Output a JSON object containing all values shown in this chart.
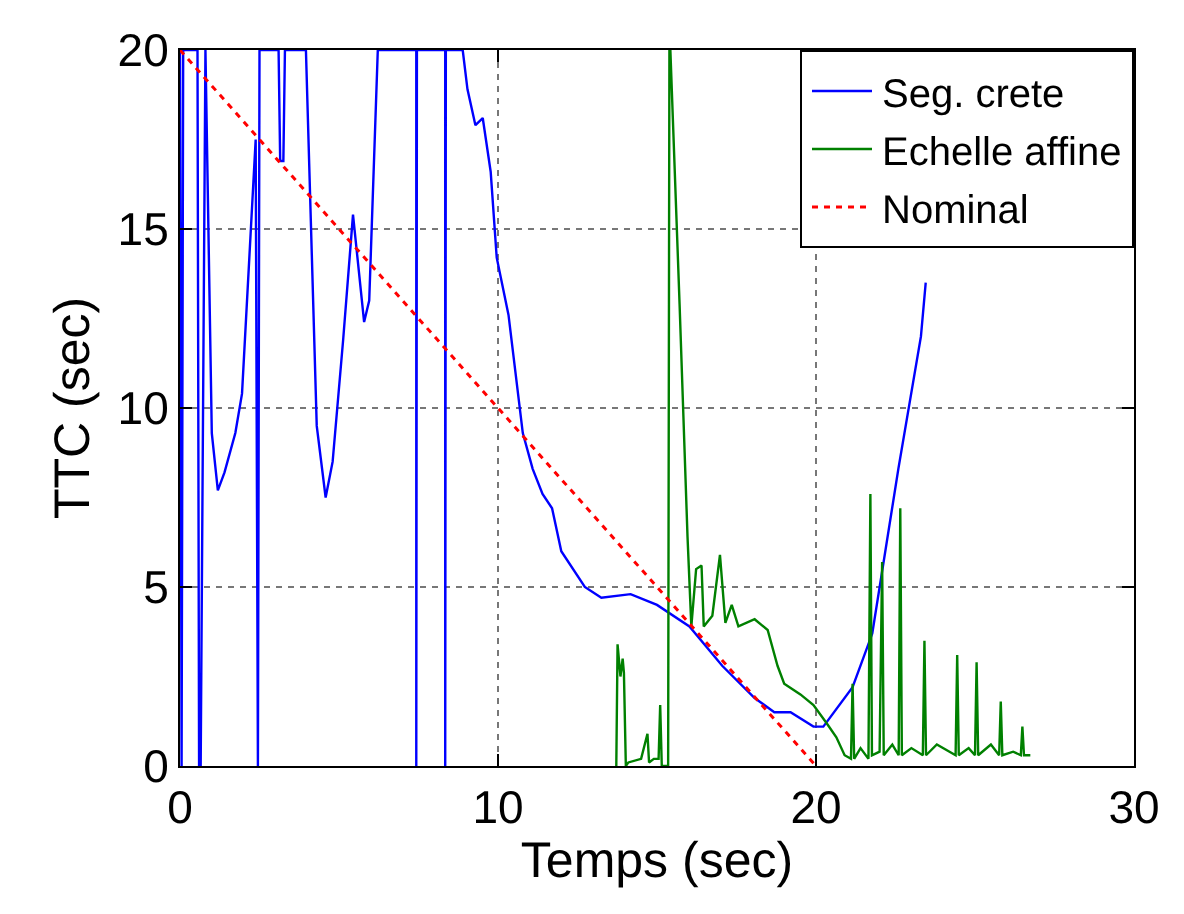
{
  "chart_data": {
    "type": "line",
    "xlabel": "Temps (sec)",
    "ylabel": "TTC (sec)",
    "xlim": [
      0,
      30
    ],
    "xticks": [
      0,
      10,
      20,
      30
    ],
    "ylim": [
      0,
      20
    ],
    "yticks": [
      0,
      5,
      10,
      15,
      20
    ],
    "grid": true,
    "legend": "top right",
    "series": [
      {
        "name": "Seg. crete",
        "color": "#0000ff",
        "line_style": "solid",
        "x": [
          0,
          0.05,
          0.1,
          0.55,
          0.6,
          0.65,
          0.8,
          1.0,
          1.19,
          1.4,
          1.74,
          1.95,
          2.38,
          2.45,
          2.5,
          3.1,
          3.15,
          3.25,
          3.3,
          3.96,
          4.3,
          4.58,
          4.8,
          5.13,
          5.44,
          5.79,
          5.95,
          6.22,
          7.43,
          7.43,
          7.45,
          8.34,
          8.34,
          8.36,
          8.89,
          9.04,
          9.29,
          9.52,
          9.77,
          9.96,
          10.33,
          10.78,
          11.09,
          11.4,
          11.7,
          11.99,
          12.73,
          13.25,
          14.17,
          15.0,
          16.02,
          17.05,
          18.07,
          18.69,
          19.2,
          19.92,
          20.23,
          21.15,
          21.77,
          22.59,
          23.3,
          23.45
        ],
        "values": [
          20,
          0,
          20,
          20,
          0,
          0,
          20,
          9.3,
          7.7,
          8.2,
          9.3,
          10.4,
          17.5,
          0,
          20,
          20,
          16.9,
          16.9,
          20,
          20,
          9.5,
          7.5,
          8.5,
          11.9,
          15.4,
          12.4,
          13.0,
          20,
          20,
          0,
          20,
          20,
          0,
          20,
          20,
          18.9,
          17.9,
          18.1,
          16.6,
          14.2,
          12.6,
          9.3,
          8.3,
          7.6,
          7.2,
          6.0,
          5.0,
          4.7,
          4.8,
          4.5,
          3.9,
          2.8,
          1.9,
          1.5,
          1.5,
          1.1,
          1.1,
          2.2,
          3.7,
          8.3,
          12.0,
          13.5
        ]
      },
      {
        "name": "Echelle affine",
        "color": "#008000",
        "line_style": "solid",
        "x": [
          13.72,
          13.76,
          13.85,
          13.92,
          13.96,
          14.02,
          14.1,
          14.5,
          14.7,
          14.75,
          14.9,
          15.05,
          15.1,
          15.15,
          15.35,
          15.39,
          15.42,
          15.71,
          15.96,
          16.08,
          16.23,
          16.4,
          16.47,
          16.74,
          16.98,
          17.15,
          17.35,
          17.56,
          18.07,
          18.48,
          18.79,
          19.0,
          19.51,
          19.92,
          20.33,
          20.64,
          20.9,
          21.1,
          21.15,
          21.2,
          21.4,
          21.65,
          21.71,
          21.76,
          22.0,
          22.08,
          22.13,
          22.4,
          22.6,
          22.65,
          22.7,
          23.0,
          23.36,
          23.41,
          23.46,
          23.8,
          24.39,
          24.44,
          24.49,
          24.8,
          25.0,
          25.05,
          25.1,
          25.5,
          25.76,
          25.81,
          25.86,
          26.2,
          26.44,
          26.49,
          26.54,
          26.74
        ],
        "values": [
          0,
          3.4,
          2.5,
          3.0,
          2.6,
          0,
          0.1,
          0.2,
          0.9,
          0.1,
          0.2,
          0.2,
          1.7,
          0,
          0,
          20,
          20,
          12.9,
          6.4,
          3.9,
          5.5,
          5.6,
          3.9,
          4.2,
          5.9,
          4.0,
          4.5,
          3.9,
          4.1,
          3.8,
          2.8,
          2.3,
          2.0,
          1.7,
          1.2,
          0.8,
          0.3,
          0.2,
          2.3,
          0.2,
          0.5,
          0.2,
          7.6,
          0.3,
          0.4,
          5.7,
          0.3,
          0.6,
          0.3,
          7.2,
          0.3,
          0.5,
          0.3,
          3.5,
          0.3,
          0.6,
          0.3,
          3.1,
          0.3,
          0.5,
          0.3,
          2.9,
          0.3,
          0.6,
          0.3,
          1.8,
          0.3,
          0.4,
          0.3,
          1.1,
          0.3,
          0.3
        ]
      },
      {
        "name": "Nominal",
        "color": "#ff0000",
        "line_style": "dotted",
        "x": [
          0,
          20
        ],
        "values": [
          20,
          0
        ]
      }
    ]
  }
}
